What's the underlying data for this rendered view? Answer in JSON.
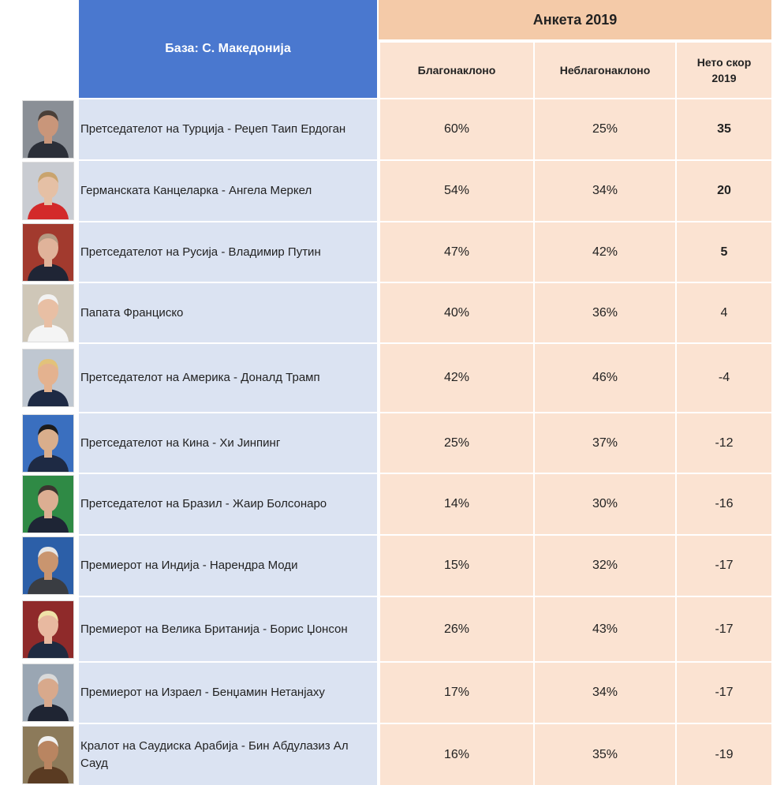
{
  "header": {
    "base_label": "База: С. Македонија",
    "survey_label": "Анкета 2019",
    "col_favorable": "Благонаклоно",
    "col_unfavorable": "Неблагонаклоно",
    "col_net_line1": "Нето скор",
    "col_net_line2": "2019"
  },
  "rows": [
    {
      "name": "Претседателот на Турција - Реџеп Таип Ердоган",
      "favorable": "60%",
      "unfavorable": "25%",
      "net": "35",
      "bold_net": true,
      "photo": {
        "bg": "#8a8f96",
        "skin": "#c9967a",
        "hair": "#4a3f38",
        "suit": "#2b2f38"
      }
    },
    {
      "name": "Германската Канцеларка - Ангела Меркел",
      "favorable": "54%",
      "unfavorable": "34%",
      "net": "20",
      "bold_net": true,
      "photo": {
        "bg": "#c9ccd2",
        "skin": "#e5c0a5",
        "hair": "#c9a46e",
        "suit": "#d32a2a"
      }
    },
    {
      "name": "Претседателот на Русија - Владимир Путин",
      "favorable": "47%",
      "unfavorable": "42%",
      "net": "5",
      "bold_net": true,
      "photo": {
        "bg": "#a23a2e",
        "skin": "#e0b39a",
        "hair": "#b59a82",
        "suit": "#1f2535"
      }
    },
    {
      "name": "Папата Франциско",
      "favorable": "40%",
      "unfavorable": "36%",
      "net": "4",
      "bold_net": false,
      "photo": {
        "bg": "#cfc7b8",
        "skin": "#e8bfa4",
        "hair": "#f2f2f2",
        "suit": "#f4f4f4"
      }
    },
    {
      "name": "Претседателот на Америка - Доналд Трамп",
      "favorable": "42%",
      "unfavorable": "46%",
      "net": "-4",
      "bold_net": false,
      "photo": {
        "bg": "#bfc7d1",
        "skin": "#e4b28f",
        "hair": "#e2c27a",
        "suit": "#1e2a44"
      }
    },
    {
      "name": "Претседателот на Кина - Хи Јинпинг",
      "favorable": "25%",
      "unfavorable": "37%",
      "net": "-12",
      "bold_net": false,
      "photo": {
        "bg": "#3a6fbf",
        "skin": "#d9ae8c",
        "hair": "#1c1c1c",
        "suit": "#1e2a44"
      }
    },
    {
      "name": "Претседателот на Бразил - Жаир Болсонаро",
      "favorable": "14%",
      "unfavorable": "30%",
      "net": "-16",
      "bold_net": false,
      "photo": {
        "bg": "#2f8a45",
        "skin": "#dcae92",
        "hair": "#3b3430",
        "suit": "#1e2535"
      }
    },
    {
      "name": "Премиерот на Индија - Нарендра Моди",
      "favorable": "15%",
      "unfavorable": "32%",
      "net": "-17",
      "bold_net": false,
      "photo": {
        "bg": "#2c5fa8",
        "skin": "#c9956f",
        "hair": "#e6e6e6",
        "suit": "#3a3d42"
      }
    },
    {
      "name": "Премиерот на Велика Британија - Борис Џонсон",
      "favorable": "26%",
      "unfavorable": "43%",
      "net": "-17",
      "bold_net": false,
      "photo": {
        "bg": "#8f2a2a",
        "skin": "#e8b9a0",
        "hair": "#efe2a8",
        "suit": "#1f2a40"
      }
    },
    {
      "name": "Премиерот на Израел - Бенџамин Нетанјаху",
      "favorable": "17%",
      "unfavorable": "34%",
      "net": "-17",
      "bold_net": false,
      "photo": {
        "bg": "#9aa6b3",
        "skin": "#d8a98c",
        "hair": "#d9d9d9",
        "suit": "#1f2533"
      }
    },
    {
      "name": "Кралот на Саудиска Арабија - Бин Абдулазиз Ал Сауд",
      "favorable": "16%",
      "unfavorable": "35%",
      "net": "-19",
      "bold_net": false,
      "photo": {
        "bg": "#8c7a5a",
        "skin": "#b98561",
        "hair": "#f0f0f0",
        "suit": "#5a3b22"
      }
    }
  ]
}
